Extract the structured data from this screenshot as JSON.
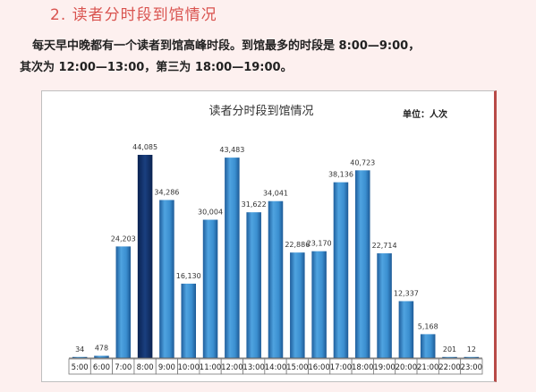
{
  "section": {
    "heading": "2. 读者分时段到馆情况"
  },
  "paragraph": {
    "line1": "每天早中晚都有一个读者到馆高峰时段。到馆最多的时段是 8:00—9:00，",
    "line2": "其次为 12:00—13:00，第三为 18:00—19:00。"
  },
  "colors": {
    "heading": "#d9534f",
    "bar_normal": "#3b8fd0",
    "bar_highlight": "#10306a",
    "background": "#fdf0ef"
  },
  "chart_data": {
    "type": "bar",
    "title": "读者分时段到馆情况",
    "unit_label": "单位：人次",
    "categories": [
      "5:00",
      "6:00",
      "7:00",
      "8:00",
      "9:00",
      "10:00",
      "11:00",
      "12:00",
      "13:00",
      "14:00",
      "15:00",
      "16:00",
      "17:00",
      "18:00",
      "19:00",
      "20:00",
      "21:00",
      "22:00",
      "23:00"
    ],
    "values": [
      34,
      478,
      24203,
      44085,
      34286,
      16130,
      30004,
      43483,
      31622,
      34041,
      22886,
      23170,
      38136,
      40723,
      22714,
      12337,
      5168,
      201,
      12
    ],
    "value_labels": [
      "34",
      "478",
      "24,203",
      "44,085",
      "34,286",
      "16,130",
      "30,004",
      "43,483",
      "31,622",
      "34,041",
      "22,886",
      "23,170",
      "38,136",
      "40,723",
      "22,714",
      "12,337",
      "5,168",
      "201",
      "12"
    ],
    "highlight_index": 3,
    "ylim": [
      0,
      47000
    ],
    "grid": false,
    "legend": "none"
  }
}
